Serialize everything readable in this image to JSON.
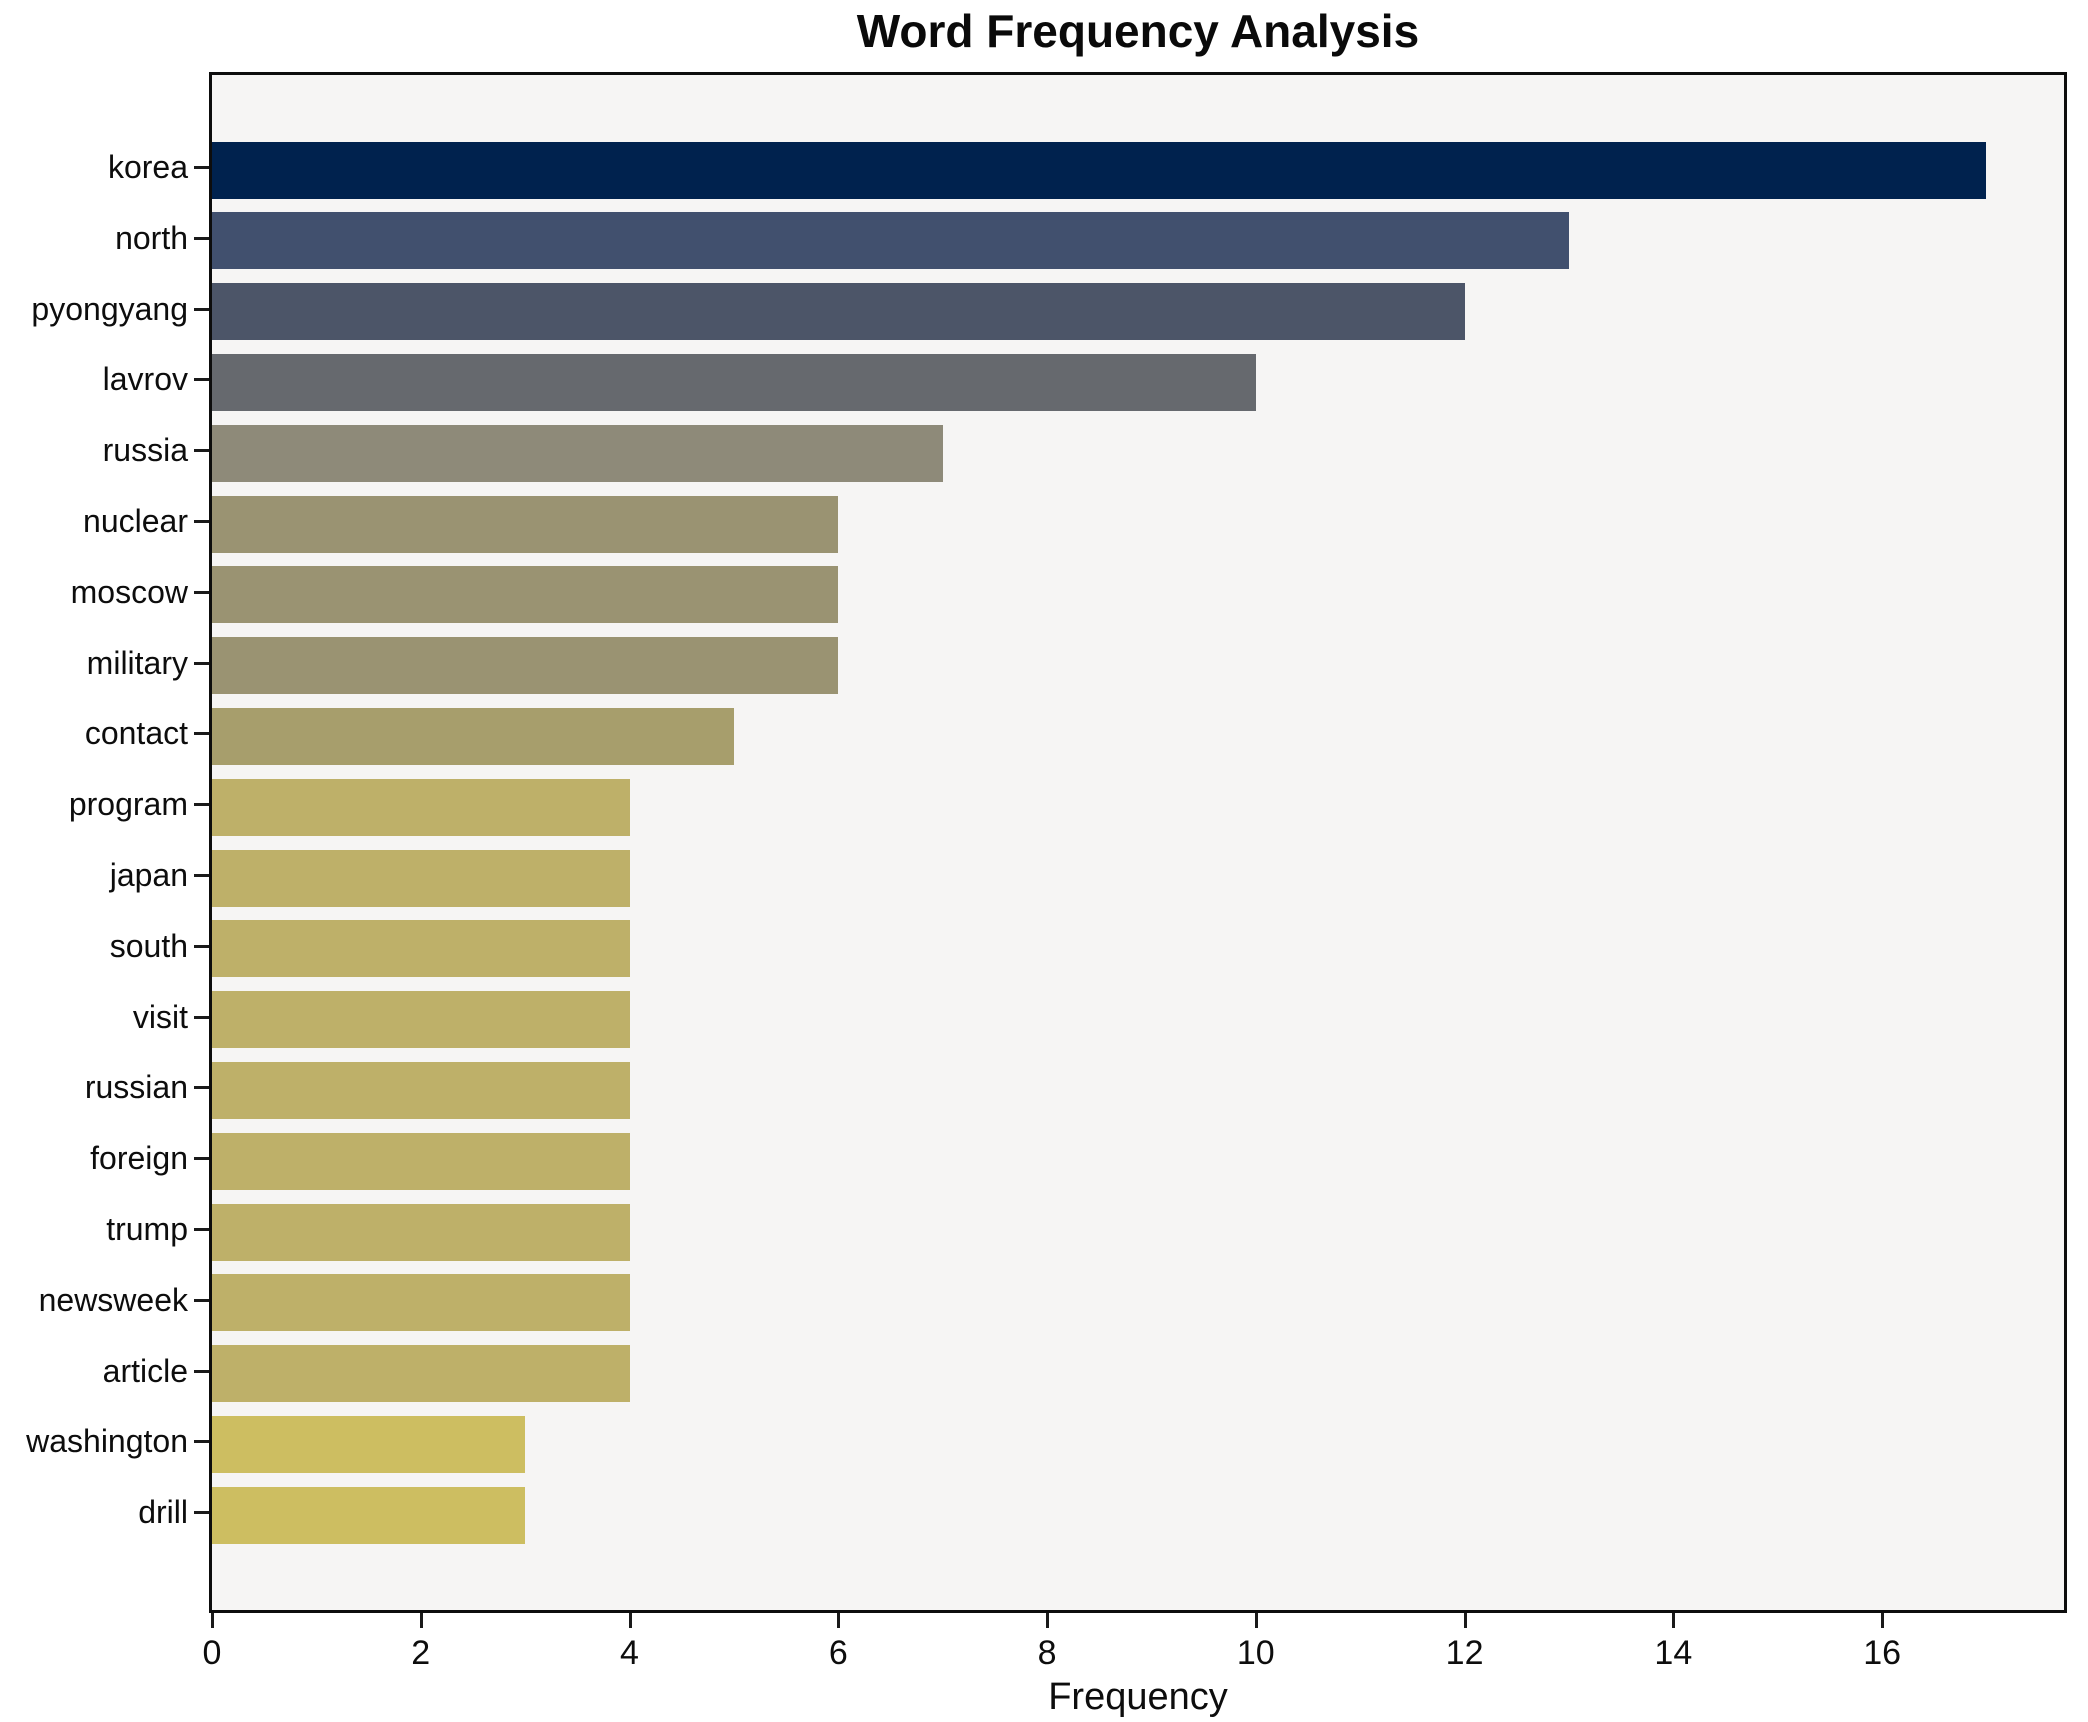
{
  "chart_data": {
    "type": "bar",
    "orientation": "horizontal",
    "title": "Word Frequency Analysis",
    "xlabel": "Frequency",
    "ylabel": "",
    "categories": [
      "korea",
      "north",
      "pyongyang",
      "lavrov",
      "russia",
      "nuclear",
      "moscow",
      "military",
      "contact",
      "program",
      "japan",
      "south",
      "visit",
      "russian",
      "foreign",
      "trump",
      "newsweek",
      "article",
      "washington",
      "drill"
    ],
    "values": [
      17,
      13,
      12,
      10,
      7,
      6,
      6,
      6,
      5,
      4,
      4,
      4,
      4,
      4,
      4,
      4,
      4,
      4,
      3,
      3
    ],
    "bar_colors": [
      "#00224e",
      "#41506e",
      "#4c5568",
      "#66696e",
      "#8e8a79",
      "#9a9372",
      "#9a9372",
      "#9a9372",
      "#a79e6c",
      "#beb069",
      "#beb069",
      "#beb069",
      "#beb069",
      "#beb069",
      "#beb069",
      "#beb069",
      "#beb069",
      "#beb069",
      "#cdbe61",
      "#cdbe61"
    ],
    "xlim": [
      0,
      17.8
    ],
    "x_ticks": [
      0,
      2,
      4,
      6,
      8,
      10,
      12,
      14,
      16
    ],
    "grid": false,
    "legend": null,
    "colors": {
      "plot_background": "#f6f5f4",
      "figure_background": "#ffffff",
      "axis_spine": "#0d0d0d",
      "text": "#0d0d0d"
    }
  }
}
